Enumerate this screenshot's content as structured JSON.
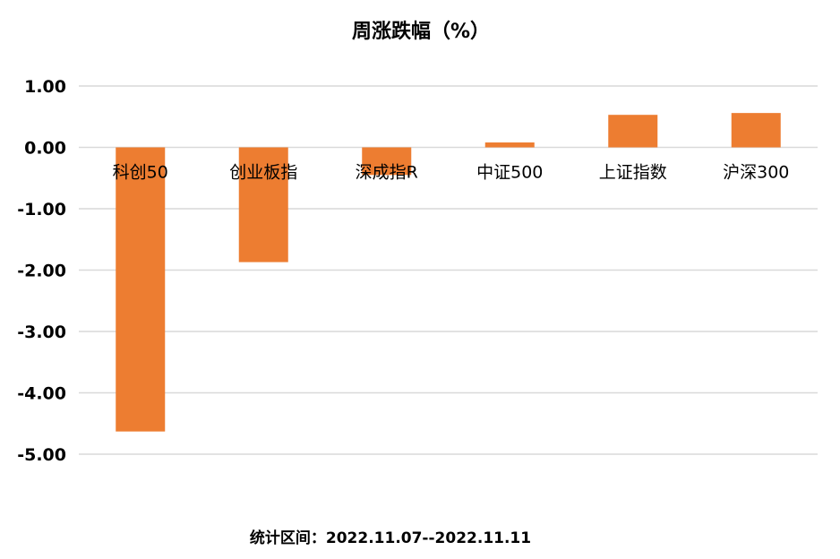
{
  "chart_data": {
    "type": "bar",
    "title": "周涨跌幅（%）",
    "categories": [
      "科创50",
      "创业板指",
      "深成指R",
      "中证500",
      "上证指数",
      "沪深300"
    ],
    "values": [
      -4.63,
      -1.87,
      -0.45,
      0.08,
      0.53,
      0.56
    ],
    "ylim": [
      -5,
      1
    ],
    "yticks": [
      "1.00",
      "0.00",
      "-1.00",
      "-2.00",
      "-3.00",
      "-4.00",
      "-5.00"
    ],
    "ytick_values": [
      1,
      0,
      -1,
      -2,
      -3,
      -4,
      -5
    ],
    "grid": true,
    "bar_color": "#ED7D31",
    "footnote": "统计区间：2022.11.07--2022.11.11"
  }
}
